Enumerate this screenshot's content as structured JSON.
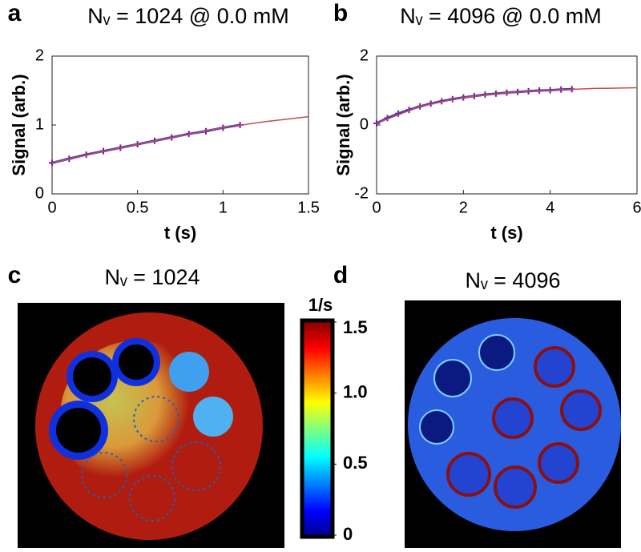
{
  "chart_data": [
    {
      "type": "line",
      "panel": "a",
      "title": "Nᵥ = 1024 @ 0.0 mM",
      "xlabel": "t (s)",
      "ylabel": "Signal (arb.)",
      "xlim": [
        0,
        1.5
      ],
      "xticks": [
        0,
        0.5,
        1,
        1.5
      ],
      "ylim": [
        0,
        2
      ],
      "yticks": [
        0,
        1,
        2
      ],
      "series": [
        {
          "color": "#3a3ad0",
          "marker": true,
          "x": [
            0,
            0.1,
            0.2,
            0.3,
            0.4,
            0.5,
            0.6,
            0.7,
            0.8,
            0.9,
            1.0,
            1.1
          ],
          "values": [
            0.45,
            0.51,
            0.57,
            0.62,
            0.67,
            0.72,
            0.77,
            0.82,
            0.87,
            0.91,
            0.96,
            1.0
          ]
        },
        {
          "color": "#c0504d",
          "marker": false,
          "x": [
            0,
            0.25,
            0.5,
            0.75,
            1.0,
            1.25,
            1.5
          ],
          "values": [
            0.45,
            0.59,
            0.72,
            0.84,
            0.96,
            1.05,
            1.12
          ]
        }
      ]
    },
    {
      "type": "line",
      "panel": "b",
      "title": "Nᵥ = 4096 @ 0.0 mM",
      "xlabel": "t (s)",
      "ylabel": "Signal (arb.)",
      "xlim": [
        0,
        6
      ],
      "xticks": [
        0,
        2,
        4,
        6
      ],
      "ylim": [
        -2,
        2
      ],
      "yticks": [
        -2,
        0,
        2
      ],
      "series": [
        {
          "color": "#3a3ad0",
          "marker": true,
          "x": [
            0,
            0.25,
            0.5,
            0.75,
            1,
            1.25,
            1.5,
            1.75,
            2,
            2.25,
            2.5,
            2.75,
            3,
            3.25,
            3.5,
            3.75,
            4,
            4.25,
            4.5
          ],
          "values": [
            0.05,
            0.2,
            0.33,
            0.44,
            0.54,
            0.62,
            0.69,
            0.75,
            0.8,
            0.84,
            0.88,
            0.91,
            0.94,
            0.96,
            0.98,
            1.0,
            1.01,
            1.03,
            1.04
          ]
        },
        {
          "color": "#c0504d",
          "marker": false,
          "x": [
            0,
            1,
            2,
            3,
            4,
            5,
            6
          ],
          "values": [
            0.05,
            0.54,
            0.8,
            0.94,
            1.01,
            1.06,
            1.08
          ]
        }
      ]
    },
    {
      "type": "image",
      "panel": "c",
      "title": "Nᵥ = 1024"
    },
    {
      "type": "image",
      "panel": "d",
      "title": "Nᵥ = 4096"
    }
  ],
  "colorbar": {
    "label": "1/s",
    "lim": [
      0,
      1.5
    ],
    "ticks": [
      1.5,
      {
        "value": 1,
        "label": "1.0"
      },
      0.5,
      0
    ]
  }
}
